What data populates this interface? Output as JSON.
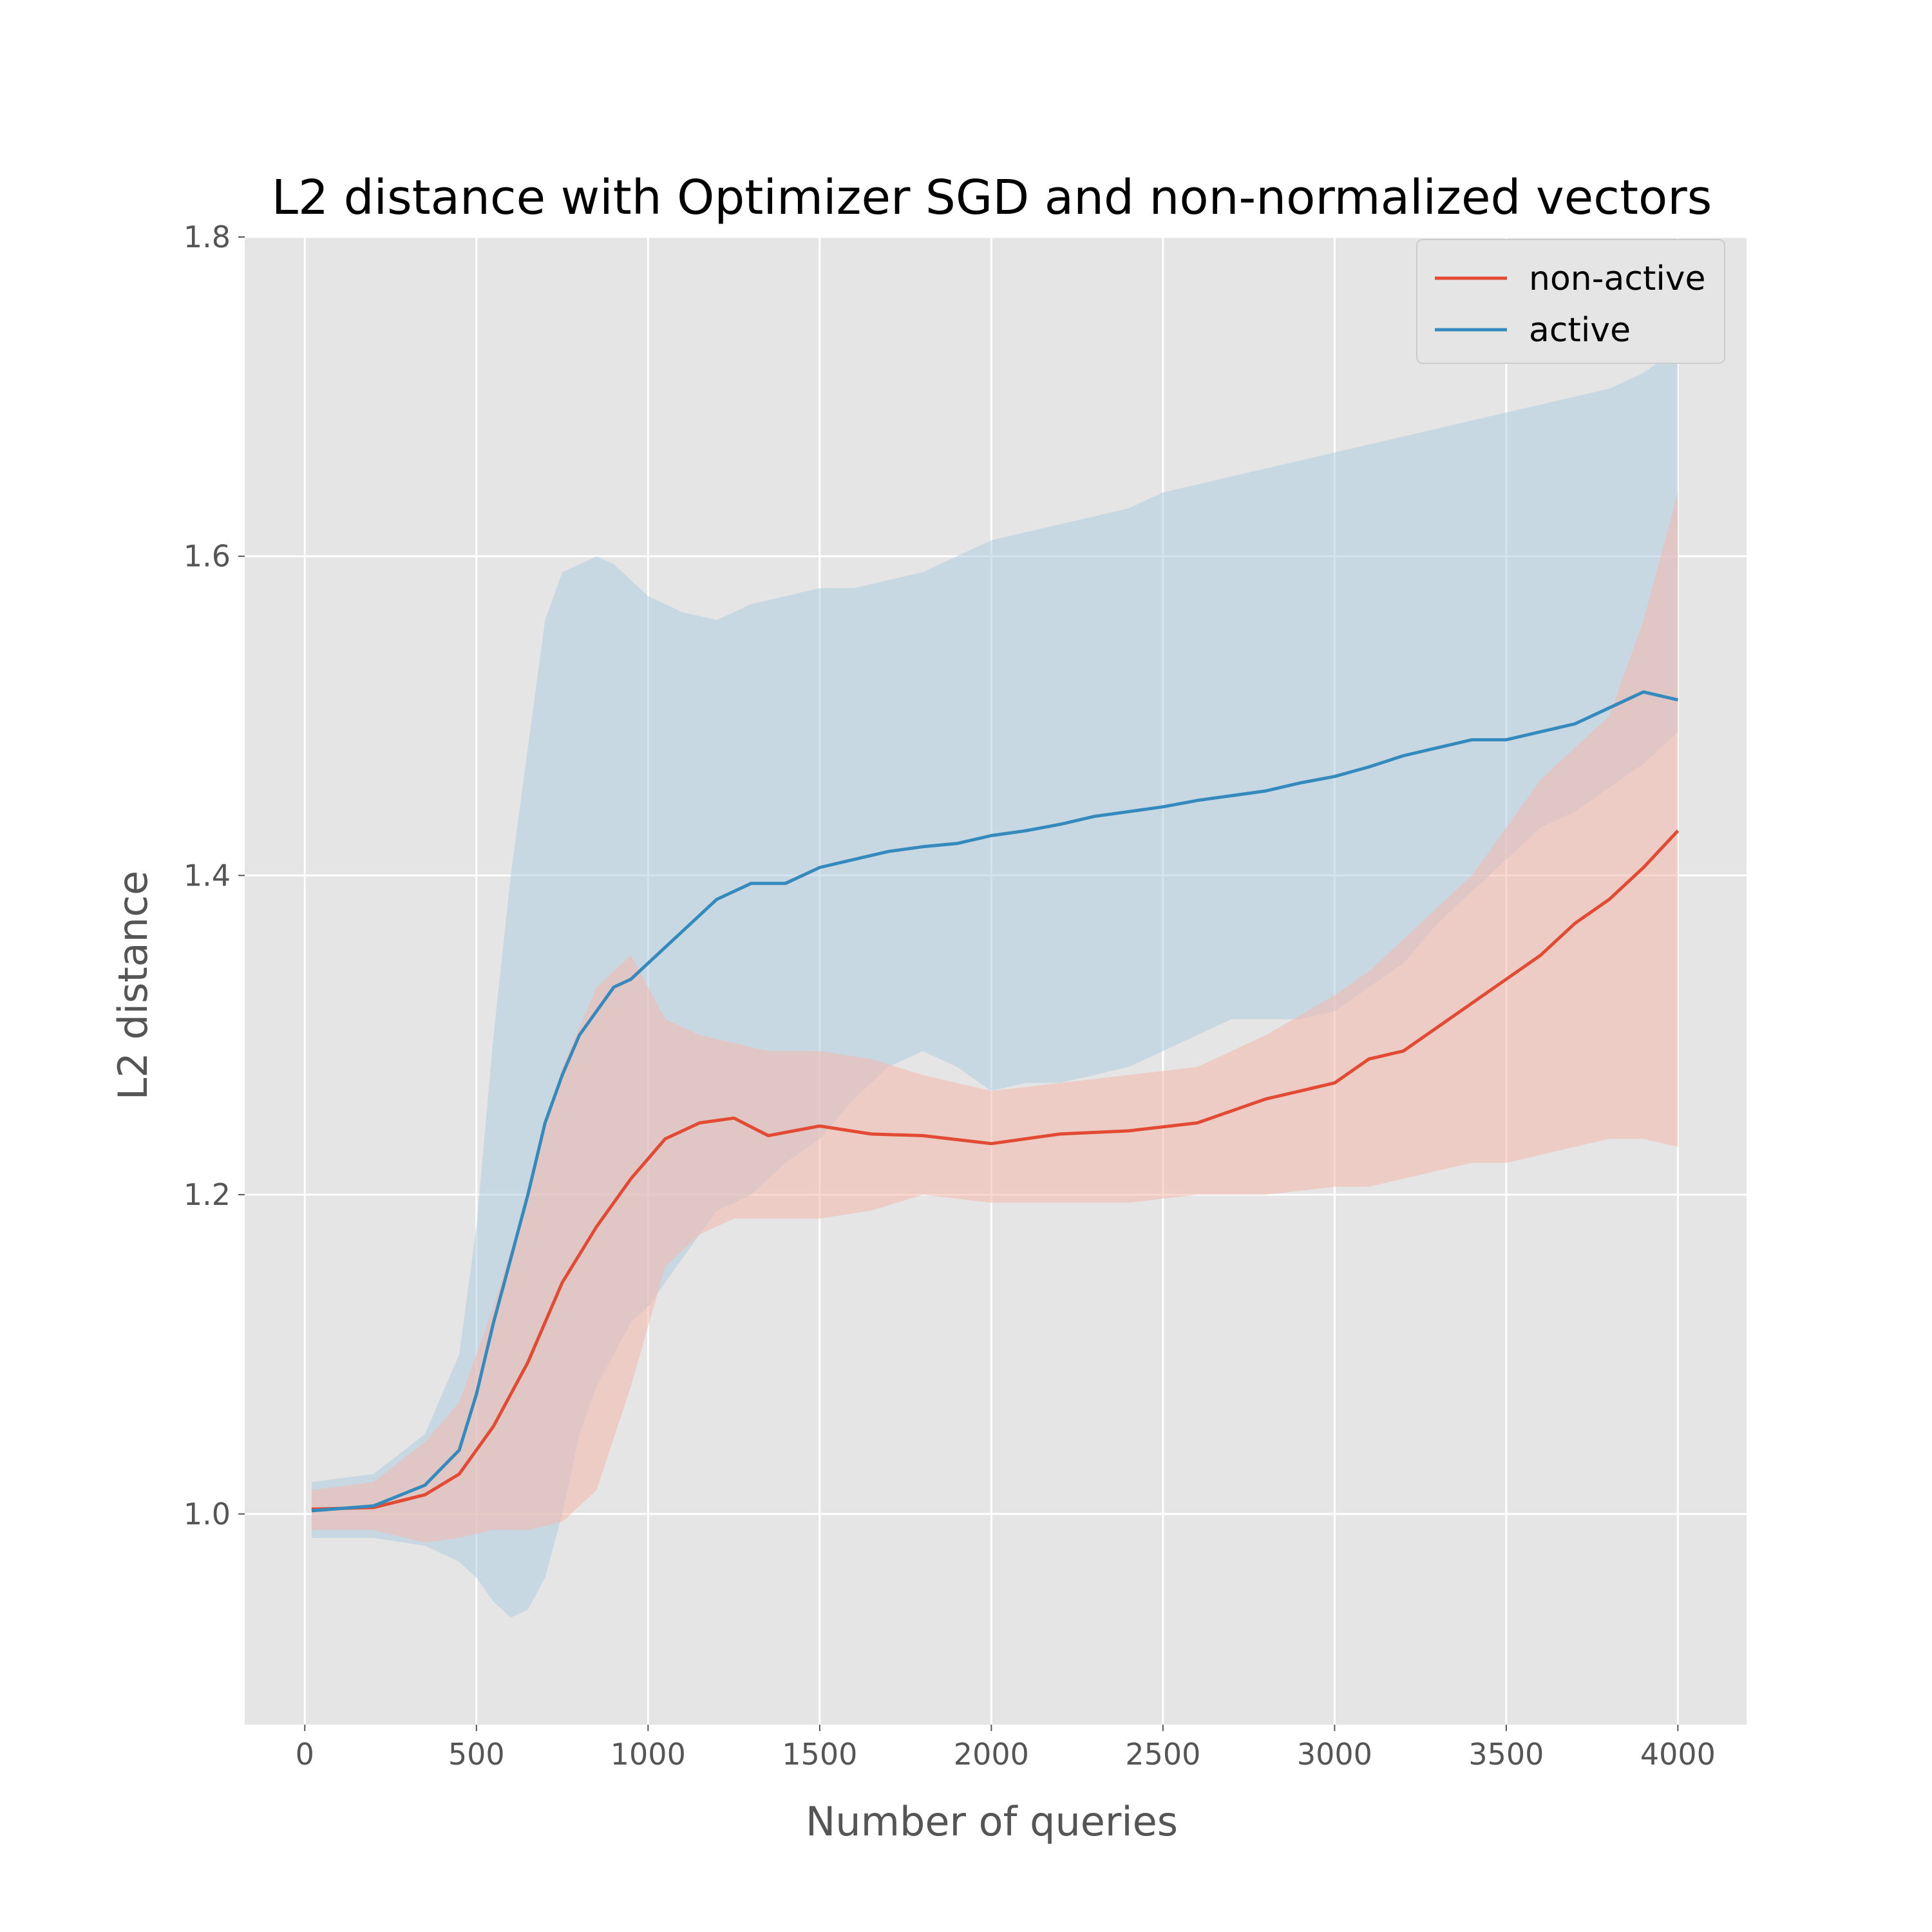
{
  "chart_data": {
    "type": "line",
    "title": "L2 distance with Optimizer SGD and non-normalized vectors",
    "xlabel": "Number of queries",
    "ylabel": "L2 distance",
    "xlim": [
      -175,
      4200
    ],
    "ylim": [
      0.868,
      1.8
    ],
    "xticks": [
      0,
      500,
      1000,
      1500,
      2000,
      2500,
      3000,
      3500,
      4000
    ],
    "yticks": [
      1.0,
      1.2,
      1.4,
      1.6,
      1.8
    ],
    "xtick_labels": [
      "0",
      "500",
      "1000",
      "1500",
      "2000",
      "2500",
      "3000",
      "3500",
      "4000"
    ],
    "ytick_labels": [
      "1.0",
      "1.2",
      "1.4",
      "1.6",
      "1.8"
    ],
    "grid": true,
    "legend_position": "top-right",
    "background": "#e5e5e5",
    "grid_color": "#ffffff",
    "series": [
      {
        "name": "non-active",
        "color": "#e24a33",
        "band_color": "#f4b8ac",
        "x": [
          20,
          200,
          350,
          450,
          550,
          650,
          750,
          850,
          950,
          1050,
          1150,
          1250,
          1350,
          1500,
          1650,
          1800,
          2000,
          2200,
          2400,
          2600,
          2800,
          3000,
          3100,
          3200,
          3300,
          3400,
          3500,
          3600,
          3700,
          3800,
          3900,
          4000
        ],
        "values": [
          1.003,
          1.004,
          1.012,
          1.025,
          1.055,
          1.095,
          1.145,
          1.18,
          1.21,
          1.235,
          1.245,
          1.248,
          1.237,
          1.243,
          1.238,
          1.237,
          1.232,
          1.238,
          1.24,
          1.245,
          1.26,
          1.27,
          1.285,
          1.29,
          1.305,
          1.32,
          1.335,
          1.35,
          1.37,
          1.385,
          1.405,
          1.428
        ],
        "lower": [
          0.99,
          0.99,
          0.982,
          0.985,
          0.99,
          0.99,
          0.995,
          1.015,
          1.08,
          1.155,
          1.175,
          1.185,
          1.185,
          1.185,
          1.19,
          1.2,
          1.195,
          1.195,
          1.195,
          1.2,
          1.2,
          1.205,
          1.205,
          1.21,
          1.215,
          1.22,
          1.22,
          1.225,
          1.23,
          1.235,
          1.235,
          1.23
        ],
        "upper": [
          1.015,
          1.02,
          1.045,
          1.07,
          1.13,
          1.2,
          1.28,
          1.33,
          1.35,
          1.31,
          1.3,
          1.295,
          1.29,
          1.29,
          1.285,
          1.275,
          1.265,
          1.27,
          1.275,
          1.28,
          1.3,
          1.325,
          1.34,
          1.36,
          1.38,
          1.4,
          1.43,
          1.46,
          1.48,
          1.5,
          1.56,
          1.64
        ]
      },
      {
        "name": "active",
        "color": "#348abd",
        "band_color": "#b0cde0",
        "x": [
          20,
          200,
          350,
          450,
          500,
          550,
          600,
          650,
          700,
          750,
          800,
          850,
          900,
          950,
          1000,
          1100,
          1200,
          1300,
          1400,
          1500,
          1600,
          1700,
          1800,
          1900,
          2000,
          2100,
          2200,
          2300,
          2400,
          2500,
          2600,
          2700,
          2800,
          2900,
          3000,
          3100,
          3200,
          3300,
          3400,
          3500,
          3600,
          3700,
          3800,
          3900,
          4000
        ],
        "values": [
          1.002,
          1.005,
          1.018,
          1.04,
          1.075,
          1.12,
          1.16,
          1.2,
          1.245,
          1.275,
          1.3,
          1.315,
          1.33,
          1.335,
          1.345,
          1.365,
          1.385,
          1.395,
          1.395,
          1.405,
          1.41,
          1.415,
          1.418,
          1.42,
          1.425,
          1.428,
          1.432,
          1.437,
          1.44,
          1.443,
          1.447,
          1.45,
          1.453,
          1.458,
          1.462,
          1.468,
          1.475,
          1.48,
          1.485,
          1.485,
          1.49,
          1.495,
          1.505,
          1.515,
          1.51
        ],
        "lower": [
          0.985,
          0.985,
          0.98,
          0.97,
          0.96,
          0.945,
          0.935,
          0.94,
          0.96,
          1.0,
          1.05,
          1.08,
          1.1,
          1.12,
          1.13,
          1.16,
          1.19,
          1.2,
          1.22,
          1.235,
          1.26,
          1.28,
          1.29,
          1.28,
          1.265,
          1.27,
          1.27,
          1.275,
          1.28,
          1.29,
          1.3,
          1.31,
          1.31,
          1.31,
          1.315,
          1.33,
          1.345,
          1.37,
          1.39,
          1.41,
          1.43,
          1.44,
          1.455,
          1.47,
          1.49
        ],
        "upper": [
          1.02,
          1.025,
          1.05,
          1.1,
          1.18,
          1.3,
          1.4,
          1.48,
          1.56,
          1.59,
          1.595,
          1.6,
          1.595,
          1.585,
          1.575,
          1.565,
          1.56,
          1.57,
          1.575,
          1.58,
          1.58,
          1.585,
          1.59,
          1.6,
          1.61,
          1.615,
          1.62,
          1.625,
          1.63,
          1.64,
          1.645,
          1.65,
          1.655,
          1.66,
          1.665,
          1.67,
          1.675,
          1.68,
          1.685,
          1.69,
          1.695,
          1.7,
          1.705,
          1.715,
          1.73
        ]
      }
    ]
  }
}
